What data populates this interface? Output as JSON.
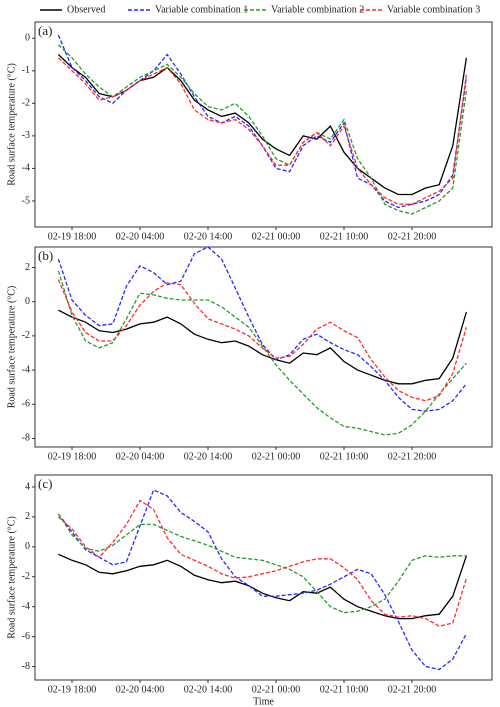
{
  "chart_data": [
    {
      "type": "line",
      "panel_label": "(a)",
      "ylabel": "Road surface temperature (°C)",
      "categories": [
        null,
        "02-19 18:00",
        null,
        null,
        null,
        null,
        "02-20 04:00",
        null,
        null,
        null,
        null,
        "02-20 14:00",
        null,
        null,
        null,
        null,
        "02-21 00:00",
        null,
        null,
        null,
        null,
        "02-21 10:00",
        null,
        null,
        null,
        null,
        "02-21 20:00",
        null,
        null,
        null,
        null
      ],
      "ylim": [
        -5.8,
        0.5
      ],
      "yticks": [
        -5,
        -4,
        -3,
        -2,
        -1,
        0
      ],
      "series": [
        {
          "name": "Observed",
          "color": "#000000",
          "dashed": false,
          "values": [
            -0.5,
            -0.9,
            -1.2,
            -1.7,
            -1.8,
            -1.6,
            -1.3,
            -1.2,
            -0.9,
            -1.3,
            -1.9,
            -2.2,
            -2.4,
            -2.3,
            -2.6,
            -3.1,
            -3.4,
            -3.6,
            -3.0,
            -3.1,
            -2.7,
            -3.5,
            -4.0,
            -4.3,
            -4.6,
            -4.8,
            -4.8,
            -4.6,
            -4.5,
            -3.3,
            -0.6
          ]
        },
        {
          "name": "Variable combination 1",
          "color": "#2828ff",
          "dashed": true,
          "values": [
            0.1,
            -0.9,
            -1.3,
            -1.8,
            -2.0,
            -1.6,
            -1.3,
            -1.0,
            -0.5,
            -1.1,
            -1.8,
            -2.4,
            -2.6,
            -2.4,
            -2.7,
            -3.3,
            -4.0,
            -4.1,
            -3.3,
            -3.0,
            -3.2,
            -2.6,
            -4.3,
            -4.5,
            -5.0,
            -5.2,
            -5.1,
            -5.0,
            -4.8,
            -4.2,
            -1.2
          ]
        },
        {
          "name": "Variable combination 2",
          "color": "#2a9a2a",
          "dashed": true,
          "values": [
            -0.2,
            -0.6,
            -1.1,
            -1.5,
            -1.8,
            -1.5,
            -1.2,
            -1.0,
            -0.8,
            -1.2,
            -1.7,
            -2.1,
            -2.2,
            -2.0,
            -2.4,
            -3.0,
            -3.7,
            -3.9,
            -3.2,
            -2.9,
            -3.1,
            -2.5,
            -3.7,
            -4.3,
            -5.1,
            -5.3,
            -5.4,
            -5.2,
            -5.0,
            -4.6,
            -1.6
          ]
        },
        {
          "name": "Variable combination 3",
          "color": "#ff2a2a",
          "dashed": true,
          "values": [
            -0.6,
            -1.0,
            -1.4,
            -1.9,
            -1.8,
            -1.6,
            -1.3,
            -1.1,
            -0.9,
            -1.4,
            -2.2,
            -2.5,
            -2.6,
            -2.5,
            -2.8,
            -3.3,
            -3.9,
            -3.9,
            -3.2,
            -2.9,
            -3.3,
            -2.7,
            -4.0,
            -4.5,
            -4.9,
            -5.1,
            -5.1,
            -4.9,
            -4.7,
            -4.3,
            -1.1
          ]
        }
      ]
    },
    {
      "type": "line",
      "panel_label": "(b)",
      "ylabel": "Road surface temperature (°C)",
      "categories": [
        null,
        "02-19 18:00",
        null,
        null,
        null,
        null,
        "02-20 04:00",
        null,
        null,
        null,
        null,
        "02-20 14:00",
        null,
        null,
        null,
        null,
        "02-21 00:00",
        null,
        null,
        null,
        null,
        "02-21 10:00",
        null,
        null,
        null,
        null,
        "02-21 20:00",
        null,
        null,
        null,
        null
      ],
      "ylim": [
        -8.5,
        3.2
      ],
      "yticks": [
        -8,
        -6,
        -4,
        -2,
        0,
        2
      ],
      "series": [
        {
          "name": "Observed",
          "color": "#000000",
          "dashed": false,
          "values": [
            -0.5,
            -0.9,
            -1.2,
            -1.7,
            -1.8,
            -1.6,
            -1.3,
            -1.2,
            -0.9,
            -1.3,
            -1.9,
            -2.2,
            -2.4,
            -2.3,
            -2.6,
            -3.1,
            -3.4,
            -3.6,
            -3.0,
            -3.1,
            -2.7,
            -3.5,
            -4.0,
            -4.3,
            -4.6,
            -4.8,
            -4.8,
            -4.6,
            -4.5,
            -3.3,
            -0.6
          ]
        },
        {
          "name": "Variable combination 1",
          "color": "#2828ff",
          "dashed": true,
          "values": [
            2.5,
            0.1,
            -0.8,
            -1.4,
            -1.3,
            0.9,
            2.1,
            1.7,
            1.0,
            1.2,
            2.8,
            3.2,
            2.5,
            0.8,
            -0.9,
            -2.5,
            -3.4,
            -3.1,
            -2.2,
            -1.9,
            -2.4,
            -2.8,
            -3.1,
            -3.8,
            -4.6,
            -5.6,
            -6.3,
            -6.4,
            -6.3,
            -5.8,
            -4.8
          ]
        },
        {
          "name": "Variable combination 2",
          "color": "#2a9a2a",
          "dashed": true,
          "values": [
            1.8,
            -0.8,
            -2.3,
            -2.7,
            -2.4,
            -1.0,
            0.5,
            0.4,
            0.2,
            0.1,
            0.1,
            0.1,
            -0.3,
            -0.9,
            -1.5,
            -2.6,
            -3.7,
            -4.6,
            -5.4,
            -6.2,
            -6.8,
            -7.3,
            -7.4,
            -7.6,
            -7.8,
            -7.7,
            -7.2,
            -6.4,
            -5.4,
            -4.5,
            -3.6
          ]
        },
        {
          "name": "Variable combination 3",
          "color": "#ff2a2a",
          "dashed": true,
          "values": [
            1.3,
            -0.6,
            -1.8,
            -2.3,
            -2.3,
            -1.4,
            -0.2,
            0.6,
            1.1,
            1.0,
            -0.1,
            -1.0,
            -1.3,
            -1.6,
            -2.0,
            -2.7,
            -3.3,
            -3.2,
            -2.5,
            -1.6,
            -1.2,
            -1.7,
            -2.1,
            -3.4,
            -4.4,
            -5.2,
            -5.6,
            -5.8,
            -5.5,
            -4.2,
            -1.5
          ]
        }
      ]
    },
    {
      "type": "line",
      "panel_label": "(c)",
      "ylabel": "Road surface temperature (°C)",
      "xlabel": "Time",
      "categories": [
        null,
        "02-19 18:00",
        null,
        null,
        null,
        null,
        "02-20 04:00",
        null,
        null,
        null,
        null,
        "02-20 14:00",
        null,
        null,
        null,
        null,
        "02-21 00:00",
        null,
        null,
        null,
        null,
        "02-21 10:00",
        null,
        null,
        null,
        null,
        "02-21 20:00",
        null,
        null,
        null,
        null
      ],
      "ylim": [
        -8.9,
        4.8
      ],
      "yticks": [
        -8,
        -6,
        -4,
        -2,
        0,
        2,
        4
      ],
      "series": [
        {
          "name": "Observed",
          "color": "#000000",
          "dashed": false,
          "values": [
            -0.5,
            -0.9,
            -1.2,
            -1.7,
            -1.8,
            -1.6,
            -1.3,
            -1.2,
            -0.9,
            -1.3,
            -1.9,
            -2.2,
            -2.4,
            -2.3,
            -2.6,
            -3.1,
            -3.4,
            -3.6,
            -3.0,
            -3.1,
            -2.7,
            -3.5,
            -4.0,
            -4.3,
            -4.6,
            -4.8,
            -4.8,
            -4.6,
            -4.5,
            -3.3,
            -0.6
          ]
        },
        {
          "name": "Variable combination 1",
          "color": "#2828ff",
          "dashed": true,
          "values": [
            2.2,
            1.0,
            -0.2,
            -0.7,
            -1.2,
            -1.0,
            1.4,
            3.8,
            3.4,
            2.3,
            1.7,
            1.0,
            -0.8,
            -2.0,
            -2.6,
            -3.3,
            -3.3,
            -3.2,
            -3.1,
            -2.9,
            -2.5,
            -2.0,
            -1.5,
            -1.8,
            -3.2,
            -5.0,
            -6.9,
            -8.0,
            -8.2,
            -7.5,
            -5.8
          ]
        },
        {
          "name": "Variable combination 2",
          "color": "#2a9a2a",
          "dashed": true,
          "values": [
            2.2,
            0.8,
            -0.1,
            -0.3,
            0.1,
            0.8,
            1.5,
            1.5,
            1.1,
            0.7,
            0.4,
            0.1,
            -0.3,
            -0.7,
            -0.8,
            -0.9,
            -1.2,
            -1.5,
            -2.0,
            -3.0,
            -4.0,
            -4.4,
            -4.3,
            -4.0,
            -3.5,
            -2.3,
            -0.9,
            -0.6,
            -0.7,
            -0.6,
            -0.6
          ]
        },
        {
          "name": "Variable combination 3",
          "color": "#ff2a2a",
          "dashed": true,
          "values": [
            2.0,
            1.2,
            0.0,
            -0.7,
            0.3,
            1.5,
            3.1,
            2.5,
            0.6,
            -0.5,
            -0.9,
            -1.3,
            -1.8,
            -2.1,
            -2.0,
            -1.8,
            -1.6,
            -1.3,
            -1.0,
            -0.8,
            -0.8,
            -1.4,
            -2.2,
            -3.6,
            -4.5,
            -4.7,
            -4.6,
            -4.8,
            -5.3,
            -5.1,
            -2.1
          ]
        }
      ]
    }
  ]
}
